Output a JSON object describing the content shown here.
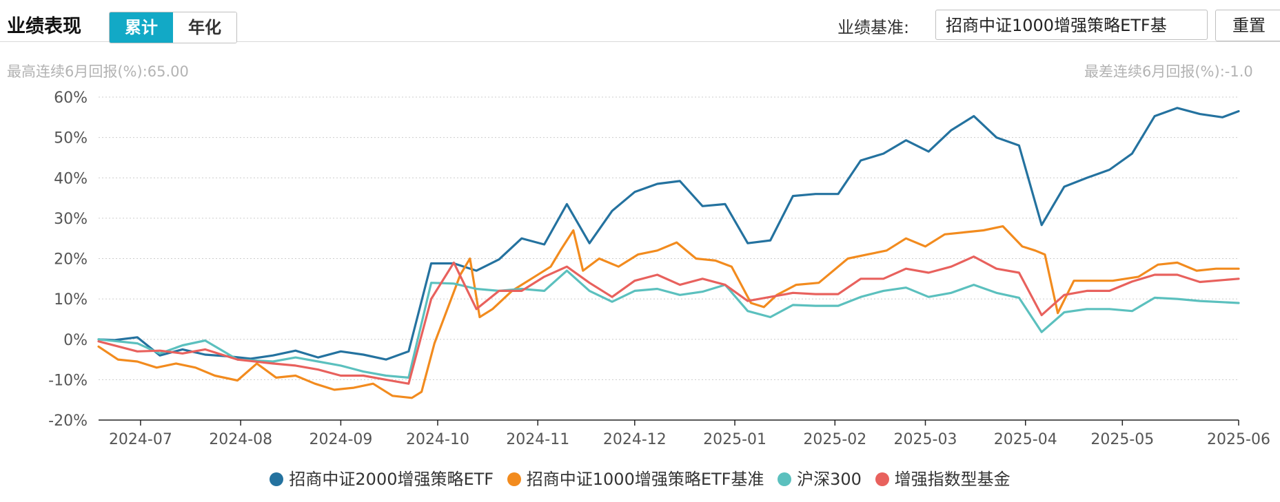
{
  "header": {
    "title": "业绩表现",
    "toggle": [
      "累计",
      "年化"
    ],
    "active_toggle": 0,
    "benchmark_label": "业绩基准:",
    "benchmark_value": "招商中证1000增强策略ETF基",
    "reset_label": "重置"
  },
  "stats": {
    "max_6m_return": "最高连续6月回报(%):65.00",
    "min_6m_return": "最差连续6月回报(%):-1.0"
  },
  "chart_data": {
    "type": "line",
    "title": "",
    "xlabel": "",
    "ylabel": "",
    "ylim": [
      -20,
      60
    ],
    "yticks": [
      -20,
      -10,
      0,
      10,
      20,
      30,
      40,
      50,
      60
    ],
    "ytick_labels": [
      "-20%",
      "-10%",
      "0%",
      "10%",
      "20%",
      "30%",
      "40%",
      "50%",
      "60%"
    ],
    "xlim": [
      "2024-06-18",
      "2025-06-06"
    ],
    "xticks": [
      "2024-07-01",
      "2024-08-01",
      "2024-09-01",
      "2024-10-01",
      "2024-11-01",
      "2024-12-01",
      "2025-01-01",
      "2025-02-01",
      "2025-03-01",
      "2025-04-01",
      "2025-05-01",
      "2025-06-06"
    ],
    "xtick_labels": [
      "2024-07",
      "2024-08",
      "2024-09",
      "2024-10",
      "2024-11",
      "2024-12",
      "2025-01",
      "2025-02",
      "2025-03",
      "2025-04",
      "2025-05",
      "2025-06"
    ],
    "grid": true,
    "legend_position": "bottom",
    "series": [
      {
        "name": "招商中证2000增强策略ETF",
        "color": "#24729f",
        "x": [
          "2024-06-18",
          "2024-06-23",
          "2024-06-30",
          "2024-07-07",
          "2024-07-14",
          "2024-07-21",
          "2024-07-28",
          "2024-08-04",
          "2024-08-11",
          "2024-08-18",
          "2024-08-25",
          "2024-09-01",
          "2024-09-08",
          "2024-09-15",
          "2024-09-22",
          "2024-09-29",
          "2024-10-06",
          "2024-10-13",
          "2024-10-20",
          "2024-10-27",
          "2024-11-03",
          "2024-11-10",
          "2024-11-17",
          "2024-11-24",
          "2024-12-01",
          "2024-12-08",
          "2024-12-15",
          "2024-12-22",
          "2024-12-29",
          "2025-01-05",
          "2025-01-12",
          "2025-01-19",
          "2025-01-26",
          "2025-02-02",
          "2025-02-09",
          "2025-02-16",
          "2025-02-23",
          "2025-03-02",
          "2025-03-09",
          "2025-03-16",
          "2025-03-23",
          "2025-03-30",
          "2025-04-06",
          "2025-04-13",
          "2025-04-20",
          "2025-04-27",
          "2025-05-04",
          "2025-05-11",
          "2025-05-18",
          "2025-05-25",
          "2025-06-01",
          "2025-06-06"
        ],
        "values": [
          0,
          -0.2,
          0.5,
          -4.0,
          -2.5,
          -3.8,
          -4.2,
          -4.8,
          -4.0,
          -2.8,
          -4.5,
          -3.0,
          -3.8,
          -5.0,
          -3.0,
          18.8,
          18.8,
          17.0,
          19.8,
          25.0,
          23.5,
          33.5,
          23.8,
          31.8,
          36.5,
          38.5,
          39.2,
          33.0,
          33.5,
          23.8,
          24.5,
          35.5,
          36.0,
          36.0,
          44.3,
          46.0,
          49.3,
          46.5,
          51.8,
          55.3,
          50.0,
          48.0,
          28.3,
          37.8,
          40.0,
          42.0,
          46.0,
          55.3,
          57.3,
          55.8,
          55.0,
          56.5
        ]
      },
      {
        "name": "招商中证1000增强策略ETF基准",
        "color": "#f28b1e",
        "x": [
          "2024-06-18",
          "2024-06-24",
          "2024-06-30",
          "2024-07-06",
          "2024-07-12",
          "2024-07-18",
          "2024-07-24",
          "2024-07-31",
          "2024-08-06",
          "2024-08-12",
          "2024-08-18",
          "2024-08-24",
          "2024-08-30",
          "2024-09-05",
          "2024-09-11",
          "2024-09-17",
          "2024-09-23",
          "2024-09-26",
          "2024-09-30",
          "2024-10-08",
          "2024-10-11",
          "2024-10-14",
          "2024-10-18",
          "2024-10-24",
          "2024-10-30",
          "2024-11-05",
          "2024-11-08",
          "2024-11-12",
          "2024-11-15",
          "2024-11-20",
          "2024-11-26",
          "2024-12-02",
          "2024-12-08",
          "2024-12-14",
          "2024-12-20",
          "2024-12-26",
          "2024-12-31",
          "2025-01-06",
          "2025-01-10",
          "2025-01-14",
          "2025-01-20",
          "2025-01-27",
          "2025-02-05",
          "2025-02-11",
          "2025-02-17",
          "2025-02-23",
          "2025-03-01",
          "2025-03-07",
          "2025-03-13",
          "2025-03-19",
          "2025-03-25",
          "2025-03-31",
          "2025-04-04",
          "2025-04-07",
          "2025-04-11",
          "2025-04-16",
          "2025-04-22",
          "2025-04-28",
          "2025-05-06",
          "2025-05-12",
          "2025-05-18",
          "2025-05-24",
          "2025-05-30",
          "2025-06-06"
        ],
        "values": [
          -1.8,
          -5.0,
          -5.5,
          -7.0,
          -6.0,
          -7.0,
          -9.0,
          -10.2,
          -6.0,
          -9.5,
          -9.0,
          -11.0,
          -12.5,
          -12.0,
          -11.0,
          -14.0,
          -14.5,
          -13.0,
          -1.0,
          16.0,
          20.0,
          5.5,
          7.5,
          12.0,
          15.0,
          18.0,
          22.0,
          27.0,
          17.0,
          20.0,
          18.0,
          21.0,
          22.0,
          24.0,
          20.0,
          19.5,
          18.0,
          9.0,
          8.0,
          11.0,
          13.5,
          14.0,
          20.0,
          21.0,
          22.0,
          25.0,
          23.0,
          26.0,
          26.5,
          27.0,
          28.0,
          23.0,
          22.0,
          21.0,
          6.5,
          14.5,
          14.5,
          14.5,
          15.5,
          18.5,
          19.0,
          17.0,
          17.5,
          17.5
        ]
      },
      {
        "name": "沪深300",
        "color": "#5bc0be",
        "x": [
          "2024-06-18",
          "2024-06-30",
          "2024-07-07",
          "2024-07-14",
          "2024-07-21",
          "2024-07-31",
          "2024-08-11",
          "2024-08-18",
          "2024-08-25",
          "2024-09-01",
          "2024-09-08",
          "2024-09-15",
          "2024-09-22",
          "2024-09-29",
          "2024-10-06",
          "2024-10-13",
          "2024-10-20",
          "2024-10-27",
          "2024-11-03",
          "2024-11-10",
          "2024-11-17",
          "2024-11-24",
          "2024-12-01",
          "2024-12-08",
          "2024-12-15",
          "2024-12-22",
          "2024-12-29",
          "2025-01-05",
          "2025-01-12",
          "2025-01-19",
          "2025-01-26",
          "2025-02-02",
          "2025-02-09",
          "2025-02-16",
          "2025-02-23",
          "2025-03-02",
          "2025-03-09",
          "2025-03-16",
          "2025-03-23",
          "2025-03-30",
          "2025-04-06",
          "2025-04-13",
          "2025-04-20",
          "2025-04-27",
          "2025-05-04",
          "2025-05-11",
          "2025-05-18",
          "2025-05-25",
          "2025-06-06"
        ],
        "values": [
          0,
          -1.0,
          -3.5,
          -1.5,
          -0.3,
          -5.0,
          -5.5,
          -4.5,
          -5.5,
          -6.5,
          -8.0,
          -9.0,
          -9.5,
          14.0,
          13.8,
          12.5,
          12.0,
          12.5,
          12.0,
          17.0,
          12.0,
          9.3,
          12.0,
          12.5,
          11.0,
          11.8,
          13.5,
          7.0,
          5.5,
          8.5,
          8.3,
          8.3,
          10.5,
          12.0,
          12.8,
          10.5,
          11.5,
          13.5,
          11.5,
          10.3,
          1.8,
          6.7,
          7.5,
          7.5,
          7.0,
          10.3,
          10.0,
          9.5,
          9.0
        ]
      },
      {
        "name": "增强指数型基金",
        "color": "#e8615d",
        "x": [
          "2024-06-18",
          "2024-06-30",
          "2024-07-07",
          "2024-07-14",
          "2024-07-21",
          "2024-07-31",
          "2024-08-11",
          "2024-08-18",
          "2024-08-25",
          "2024-09-01",
          "2024-09-08",
          "2024-09-15",
          "2024-09-22",
          "2024-09-29",
          "2024-10-06",
          "2024-10-13",
          "2024-10-20",
          "2024-10-27",
          "2024-11-03",
          "2024-11-10",
          "2024-11-17",
          "2024-11-24",
          "2024-12-01",
          "2024-12-08",
          "2024-12-15",
          "2024-12-22",
          "2024-12-29",
          "2025-01-05",
          "2025-01-12",
          "2025-01-19",
          "2025-01-26",
          "2025-02-02",
          "2025-02-09",
          "2025-02-16",
          "2025-02-23",
          "2025-03-02",
          "2025-03-09",
          "2025-03-16",
          "2025-03-23",
          "2025-03-30",
          "2025-04-06",
          "2025-04-13",
          "2025-04-20",
          "2025-04-27",
          "2025-05-04",
          "2025-05-11",
          "2025-05-18",
          "2025-05-25",
          "2025-06-06"
        ],
        "values": [
          -0.5,
          -3.0,
          -2.8,
          -3.5,
          -2.5,
          -5.0,
          -6.0,
          -6.5,
          -7.5,
          -9.0,
          -9.0,
          -10.0,
          -11.0,
          10.0,
          19.0,
          7.5,
          12.0,
          12.0,
          15.5,
          18.0,
          14.0,
          10.5,
          14.5,
          16.0,
          13.5,
          15.0,
          13.5,
          9.5,
          10.5,
          11.5,
          11.2,
          11.2,
          15.0,
          15.0,
          17.5,
          16.5,
          18.0,
          20.5,
          17.5,
          16.5,
          6.0,
          11.0,
          12.0,
          12.0,
          14.3,
          16.0,
          16.0,
          14.2,
          15.0
        ]
      }
    ]
  }
}
